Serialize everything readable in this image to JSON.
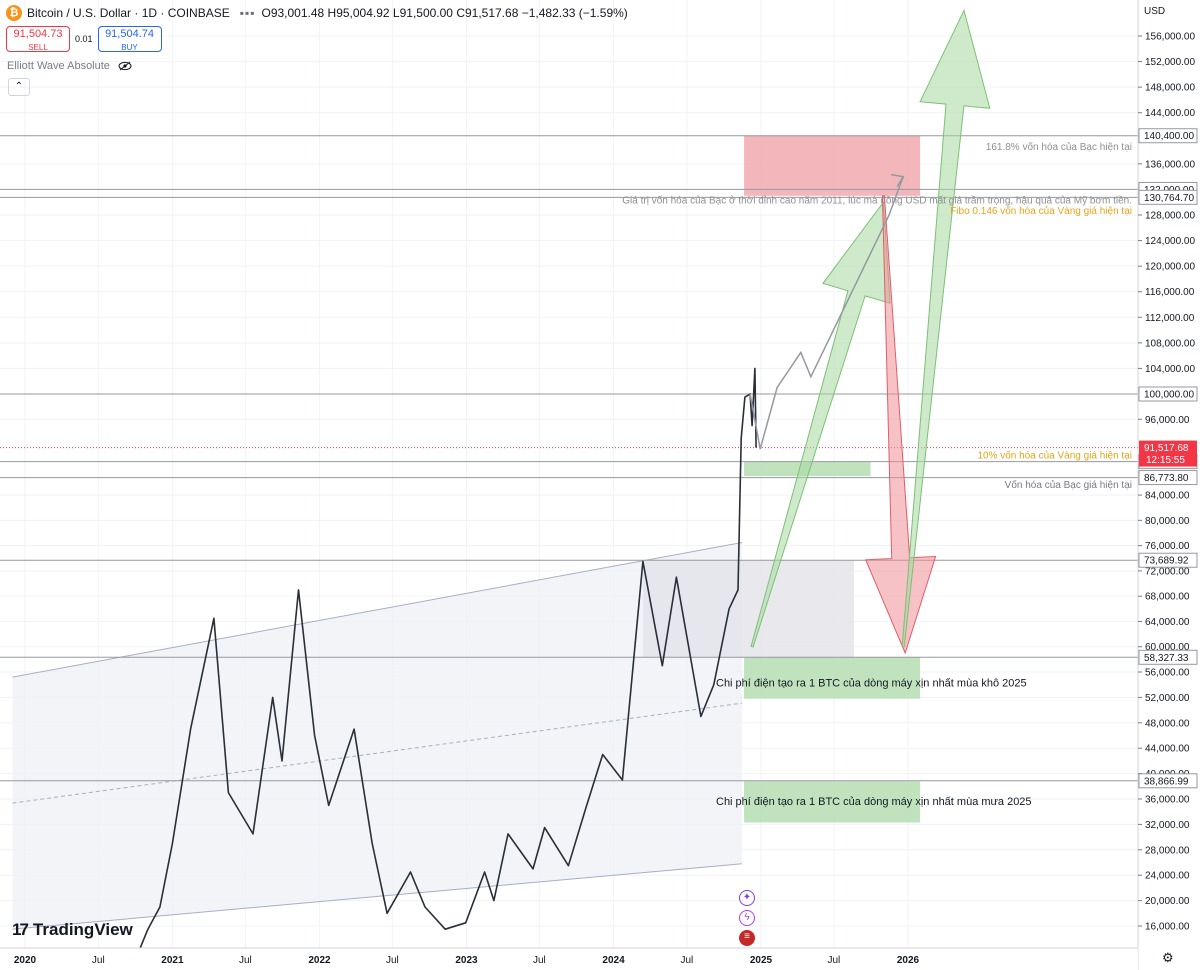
{
  "header": {
    "logo_glyph": "₿",
    "symbol": "Bitcoin / U.S. Dollar · 1D · COINBASE",
    "ohlc": "O93,001.48 H95,004.92 L91,500.00 C91,517.68 −1,482.33 (−1.59%)"
  },
  "trade": {
    "sell_price": "91,504.73",
    "sell_label": "SELL",
    "spread": "0.01",
    "buy_price": "91,504.74",
    "buy_label": "BUY"
  },
  "indicator": {
    "name": "Elliott Wave Absolute"
  },
  "price_scale": {
    "currency": "USD",
    "ticks": [
      "156,000.00",
      "152,000.00",
      "148,000.00",
      "144,000.00",
      "136,000.00",
      "128,000.00",
      "124,000.00",
      "120,000.00",
      "116,000.00",
      "112,000.00",
      "108,000.00",
      "104,000.00",
      "96,000.00",
      "84,000.00",
      "80,000.00",
      "76,000.00",
      "72,000.00",
      "68,000.00",
      "64,000.00",
      "60,000.00",
      "56,000.00",
      "52,000.00",
      "48,000.00",
      "44,000.00",
      "40,000.00",
      "36,000.00",
      "32,000.00",
      "28,000.00",
      "24,000.00",
      "20,000.00",
      "16,000.00"
    ],
    "ranges": [
      [
        0,
        156000,
        100000
      ],
      [
        1,
        100000,
        56000
      ],
      [
        2,
        56000,
        16000
      ]
    ],
    "labels": [
      {
        "text": "140,400.00",
        "value": 140400,
        "kind": "level"
      },
      {
        "text": "132,000.00",
        "value": 132000,
        "kind": "level"
      },
      {
        "text": "130,764.70",
        "value": 130764.7,
        "kind": "level"
      },
      {
        "text": "100,000.00",
        "value": 100000,
        "kind": "level"
      },
      {
        "text": "89,300.00",
        "value": 89300,
        "kind": "level"
      },
      {
        "text": "86,773.80",
        "value": 86773.8,
        "kind": "level"
      },
      {
        "text": "73,689.92",
        "value": 73689.92,
        "kind": "level"
      },
      {
        "text": "58,327.33",
        "value": 58327.33,
        "kind": "level"
      },
      {
        "text": "38,866.99",
        "value": 38866.99,
        "kind": "level"
      }
    ],
    "last_price": "91,517.68",
    "countdown": "12:15:55"
  },
  "time_axis": {
    "ticks": [
      {
        "label": "2020",
        "bold": true,
        "date": "2020-01-01"
      },
      {
        "label": "Jul",
        "bold": false,
        "date": "2020-07-01"
      },
      {
        "label": "2021",
        "bold": true,
        "date": "2021-01-01"
      },
      {
        "label": "Jul",
        "bold": false,
        "date": "2021-07-01"
      },
      {
        "label": "2022",
        "bold": true,
        "date": "2022-01-01"
      },
      {
        "label": "Jul",
        "bold": false,
        "date": "2022-07-01"
      },
      {
        "label": "2023",
        "bold": true,
        "date": "2023-01-01"
      },
      {
        "label": "Jul",
        "bold": false,
        "date": "2023-07-01"
      },
      {
        "label": "2024",
        "bold": true,
        "date": "2024-01-01"
      },
      {
        "label": "Jul",
        "bold": false,
        "date": "2024-07-01"
      },
      {
        "label": "2025",
        "bold": true,
        "date": "2025-01-01"
      },
      {
        "label": "Jul",
        "bold": false,
        "date": "2025-07-01"
      },
      {
        "label": "2026",
        "bold": true,
        "date": "2026-01-01"
      }
    ]
  },
  "chart_data": {
    "type": "line",
    "series": [
      {
        "x": [
          "2020-10-01",
          "2020-11-01",
          "2020-12-01",
          "2021-01-01",
          "2021-02-15",
          "2021-04-14",
          "2021-05-20",
          "2021-07-20",
          "2021-09-07",
          "2021-09-30",
          "2021-11-10",
          "2021-12-20",
          "2022-01-24",
          "2022-03-28",
          "2022-05-12",
          "2022-06-18",
          "2022-08-15",
          "2022-09-20",
          "2022-11-09",
          "2022-12-30",
          "2023-02-15",
          "2023-03-10",
          "2023-04-14",
          "2023-06-15",
          "2023-07-14",
          "2023-09-11",
          "2023-10-24",
          "2023-12-05",
          "2024-01-23",
          "2024-03-14",
          "2024-05-01",
          "2024-06-05",
          "2024-08-05",
          "2024-09-06",
          "2024-10-14",
          "2024-11-05",
          "2024-11-13",
          "2024-11-22",
          "2024-12-05",
          "2024-12-10",
          "2024-12-17",
          "2024-12-20"
        ],
        "values": [
          10700,
          15500,
          19000,
          29000,
          47000,
          64500,
          37000,
          30500,
          52000,
          42000,
          69000,
          46000,
          35000,
          47000,
          29000,
          18000,
          24500,
          19000,
          15500,
          16500,
          24500,
          20000,
          30500,
          25000,
          31500,
          25500,
          34500,
          43000,
          39000,
          73500,
          57000,
          71000,
          49000,
          54000,
          66000,
          69000,
          93000,
          99500,
          100000,
          95000,
          104000,
          91517.68
        ]
      }
    ],
    "projection_path": {
      "x": [
        "2024-12-05",
        "2024-12-30",
        "2025-02-10",
        "2025-04-10",
        "2025-05-05",
        "2025-11-15",
        "2025-12-20"
      ],
      "values": [
        100000,
        91300,
        101000,
        106500,
        102700,
        128000,
        134000
      ]
    },
    "annotations": [
      {
        "text": "161.8% vốn hóa của Bạc hiện tại",
        "value": 138600,
        "color": "#8f8f8f"
      },
      {
        "text": "Giá trị vốn hóa của Bạc ở thời đỉnh cao năm 2011, lúc mà đồng USD mất giá trầm trọng, hậu quả của Mỹ bơm tiền.",
        "value": 130300,
        "color": "#8f8f8f"
      },
      {
        "text": "Fibo 0.146 vốn hóa của Vàng giá hiện tại",
        "value": 128600,
        "color": "#e8a317"
      },
      {
        "text": "10% vốn hóa của Vàng giá hiện tại",
        "value": 90300,
        "color": "#e8a317"
      },
      {
        "text": "Vốn hóa của Bạc giá hiện tại",
        "value": 85600,
        "color": "#787b86"
      },
      {
        "text": "Chi phí điện tạo ra 1 BTC của dòng máy xịn nhất mùa khô 2025",
        "value": 54200,
        "color": "#131722"
      },
      {
        "text": "Chi phí điện tạo ra 1 BTC của dòng máy xịn nhất mùa mưa 2025",
        "value": 35500,
        "color": "#131722"
      }
    ],
    "zones": [
      {
        "from": "2024-11-20",
        "to": "2026-01-31",
        "low": 131000,
        "high": 140400,
        "color": "#f1a9ae"
      },
      {
        "from": "2024-11-20",
        "to": "2025-09-30",
        "low": 87000,
        "high": 89300,
        "color": "#b5deb3"
      },
      {
        "from": "2024-11-20",
        "to": "2026-01-31",
        "low": 51800,
        "high": 58300,
        "color": "#b5deb3"
      },
      {
        "from": "2024-11-20",
        "to": "2026-01-31",
        "low": 32300,
        "high": 38800,
        "color": "#b5deb3"
      },
      {
        "from": "2024-03-14",
        "to": "2025-08-20",
        "low": 58300,
        "high": 73690,
        "color": "#e4e4ea"
      }
    ],
    "arrows": [
      {
        "color": "green",
        "from": {
          "x": "2024-12-10",
          "value": 60000
        },
        "to": {
          "x": "2025-11-01",
          "value": 130000
        }
      },
      {
        "color": "red",
        "from": {
          "x": "2025-11-01",
          "value": 131000
        },
        "to": {
          "x": "2025-12-25",
          "value": 59000
        }
      },
      {
        "color": "green",
        "from": {
          "x": "2025-12-20",
          "value": 60000
        },
        "to": {
          "x": "2026-05-20",
          "value": 160000
        }
      }
    ],
    "channel": {
      "upper": [
        {
          "x": "2019-12-01",
          "value": 55200
        },
        {
          "x": "2024-11-15",
          "value": 76500
        }
      ],
      "lower": [
        {
          "x": "2019-12-01",
          "value": 15500
        },
        {
          "x": "2024-11-15",
          "value": 25800
        }
      ]
    }
  },
  "logo": {
    "text": "TradingView"
  },
  "icons": {
    "settings": "gear-icon",
    "visibility": "eye-icon"
  }
}
